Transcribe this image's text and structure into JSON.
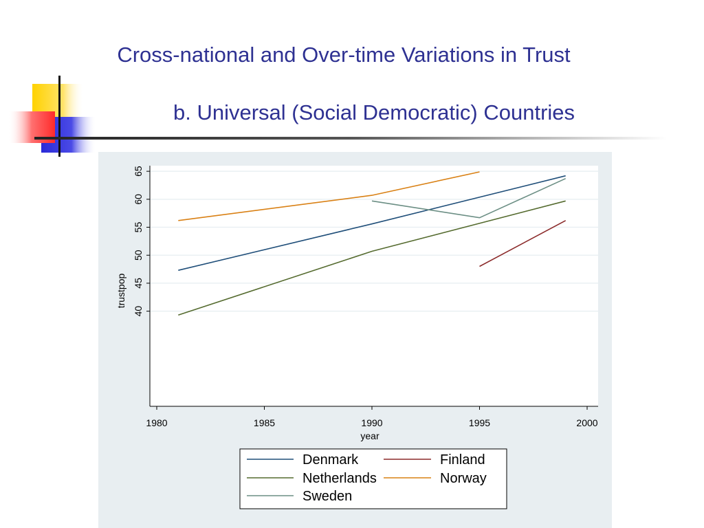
{
  "slide": {
    "title": "Cross-national and Over-time Variations in Trust",
    "subtitle": "b. Universal (Social Democratic) Countries"
  },
  "colors": {
    "title": "#2e3192",
    "panel_background": "#e8eef1",
    "gridline": "#eaf0f3"
  },
  "chart_data": {
    "type": "line",
    "title": "",
    "xlabel": "year",
    "ylabel": "trustpop",
    "xlim": [
      1980,
      2000
    ],
    "ylim": [
      23,
      66
    ],
    "x_ticks": [
      1980,
      1985,
      1990,
      1995,
      2000
    ],
    "y_ticks": [
      40,
      45,
      50,
      55,
      60,
      65
    ],
    "grid": true,
    "legend_position": "bottom",
    "series": [
      {
        "name": "Denmark",
        "color": "#1f4e79",
        "points": [
          [
            1981,
            47.3
          ],
          [
            1990,
            55.6
          ],
          [
            1999,
            64.2
          ]
        ]
      },
      {
        "name": "Finland",
        "color": "#8b2a2a",
        "points": [
          [
            1995,
            48.0
          ],
          [
            1999,
            56.2
          ]
        ]
      },
      {
        "name": "Netherlands",
        "color": "#556b2f",
        "points": [
          [
            1981,
            39.3
          ],
          [
            1990,
            50.7
          ],
          [
            1999,
            59.7
          ]
        ]
      },
      {
        "name": "Norway",
        "color": "#d98014",
        "points": [
          [
            1981,
            56.2
          ],
          [
            1990,
            60.7
          ],
          [
            1995,
            64.9
          ]
        ]
      },
      {
        "name": "Sweden",
        "color": "#6b8e84",
        "points": [
          [
            1990,
            59.7
          ],
          [
            1995,
            56.7
          ],
          [
            1999,
            63.7
          ]
        ]
      }
    ]
  }
}
